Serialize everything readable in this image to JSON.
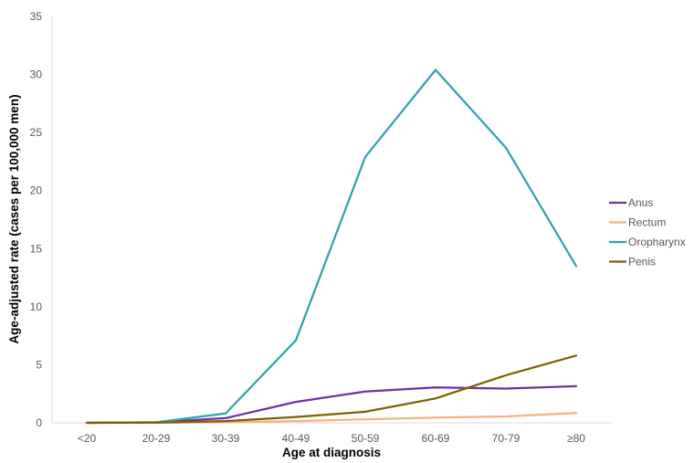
{
  "chart_data": {
    "type": "line",
    "title": "",
    "xlabel": "Age at diagnosis",
    "ylabel": "Age-adjusted rate (cases per 100,000 men)",
    "categories": [
      "<20",
      "20-29",
      "30-39",
      "40-49",
      "50-59",
      "60-69",
      "70-79",
      "≥80"
    ],
    "ylim": [
      0,
      35
    ],
    "yticks": [
      0,
      5,
      10,
      15,
      20,
      25,
      30,
      35
    ],
    "grid": false,
    "legend_position": "right",
    "series": [
      {
        "name": "Anus",
        "color": "#7030A0",
        "values": [
          0,
          0.05,
          0.4,
          1.8,
          2.7,
          3.05,
          2.95,
          3.15
        ]
      },
      {
        "name": "Rectum",
        "color": "#F4B183",
        "values": [
          0,
          0,
          0.05,
          0.15,
          0.3,
          0.45,
          0.55,
          0.85
        ]
      },
      {
        "name": "Oropharynx",
        "color": "#31A2AC",
        "values": [
          0,
          0.05,
          0.8,
          7.1,
          22.9,
          30.4,
          23.7,
          13.5
        ]
      },
      {
        "name": "Penis",
        "color": "#7F6000",
        "values": [
          0,
          0.02,
          0.15,
          0.5,
          0.95,
          2.1,
          4.1,
          5.8
        ]
      }
    ]
  }
}
